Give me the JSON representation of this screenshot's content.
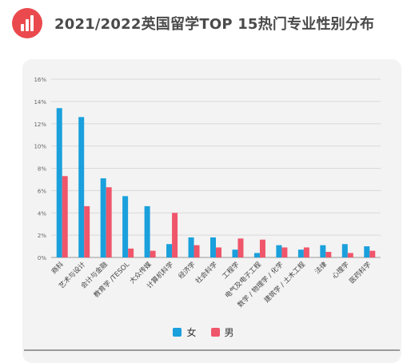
{
  "header": {
    "title": "2021/2022英国留学TOP 15热门专业性别分布",
    "logo_icon": "bar-chart-icon",
    "logo_color": "#ea4a4d"
  },
  "legend": [
    {
      "label": "女",
      "color": "#1aa0dc"
    },
    {
      "label": "男",
      "color": "#f0566a"
    }
  ],
  "chart_data": {
    "type": "bar",
    "title": "",
    "xlabel": "",
    "ylabel": "",
    "ylim": [
      0,
      16
    ],
    "yticks": [
      "0%",
      "2%",
      "4%",
      "6%",
      "8%",
      "10%",
      "12%",
      "14%",
      "16%"
    ],
    "grid": true,
    "legend_position": "bottom",
    "categories": [
      "商科",
      "艺术与设计",
      "会计与金融",
      "教育学 /TESOL",
      "大众传媒",
      "计算机科学",
      "经济学",
      "社会科学",
      "工程学",
      "电气及电子工程",
      "数学 / 物理学 / 化学",
      "建筑学 / 土木工程",
      "法律",
      "心理学",
      "医药科学"
    ],
    "series": [
      {
        "name": "女",
        "color": "#1aa0dc",
        "values": [
          13.4,
          12.6,
          7.1,
          5.5,
          4.6,
          1.2,
          1.8,
          1.8,
          0.7,
          0.4,
          1.1,
          0.7,
          1.1,
          1.2,
          1.0
        ]
      },
      {
        "name": "男",
        "color": "#f0566a",
        "values": [
          7.3,
          4.6,
          6.3,
          0.8,
          0.6,
          4.0,
          1.1,
          0.9,
          1.7,
          1.6,
          0.9,
          0.9,
          0.5,
          0.4,
          0.6
        ]
      }
    ]
  }
}
